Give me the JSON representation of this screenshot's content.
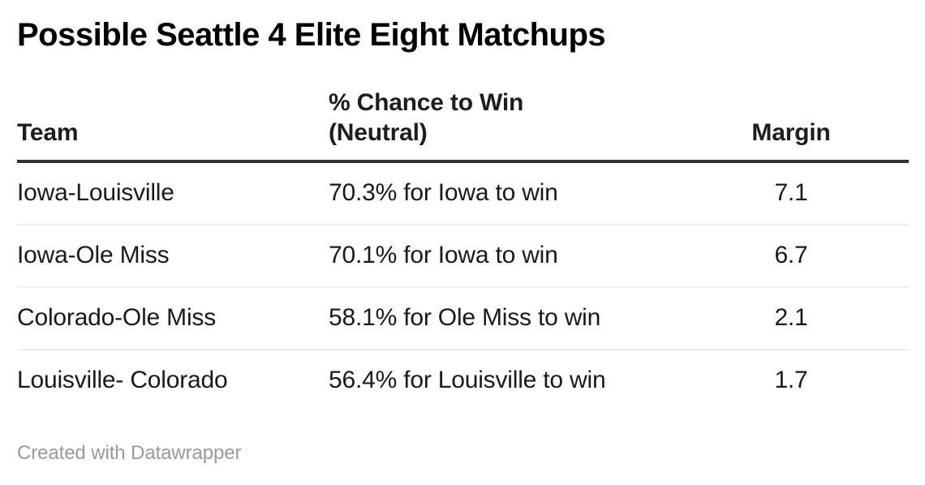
{
  "chart_data": {
    "type": "table",
    "title": "Possible Seattle 4 Elite Eight Matchups",
    "columns": [
      {
        "id": "team",
        "label": "Team",
        "align": "left"
      },
      {
        "id": "chance",
        "label": "% Chance to Win (Neutral)",
        "label_lines": [
          "% Chance to Win",
          "(Neutral)"
        ],
        "align": "left"
      },
      {
        "id": "margin",
        "label": "Margin",
        "align": "center"
      }
    ],
    "rows": [
      {
        "team": "Iowa-Louisville",
        "chance": "70.3% for Iowa to win",
        "margin": "7.1"
      },
      {
        "team": "Iowa-Ole Miss",
        "chance": "70.1% for Iowa to win",
        "margin": "6.7"
      },
      {
        "team": "Colorado-Ole Miss",
        "chance": "58.1% for Ole Miss to win",
        "margin": "2.1"
      },
      {
        "team": "Louisville- Colorado",
        "chance": "56.4% for Louisville to win",
        "margin": "1.7"
      }
    ],
    "margin_values": [
      7.1,
      6.7,
      2.1,
      1.7
    ],
    "win_probabilities_pct": [
      70.3,
      70.1,
      58.1,
      56.4
    ]
  },
  "footer": {
    "attribution": "Created with Datawrapper"
  },
  "colors": {
    "background": "#ffffff",
    "title_text": "#000000",
    "body_text": "#1a1a1a",
    "header_border": "#333333",
    "row_divider": "#eeeeee",
    "footer_text": "#9a9a9a"
  }
}
